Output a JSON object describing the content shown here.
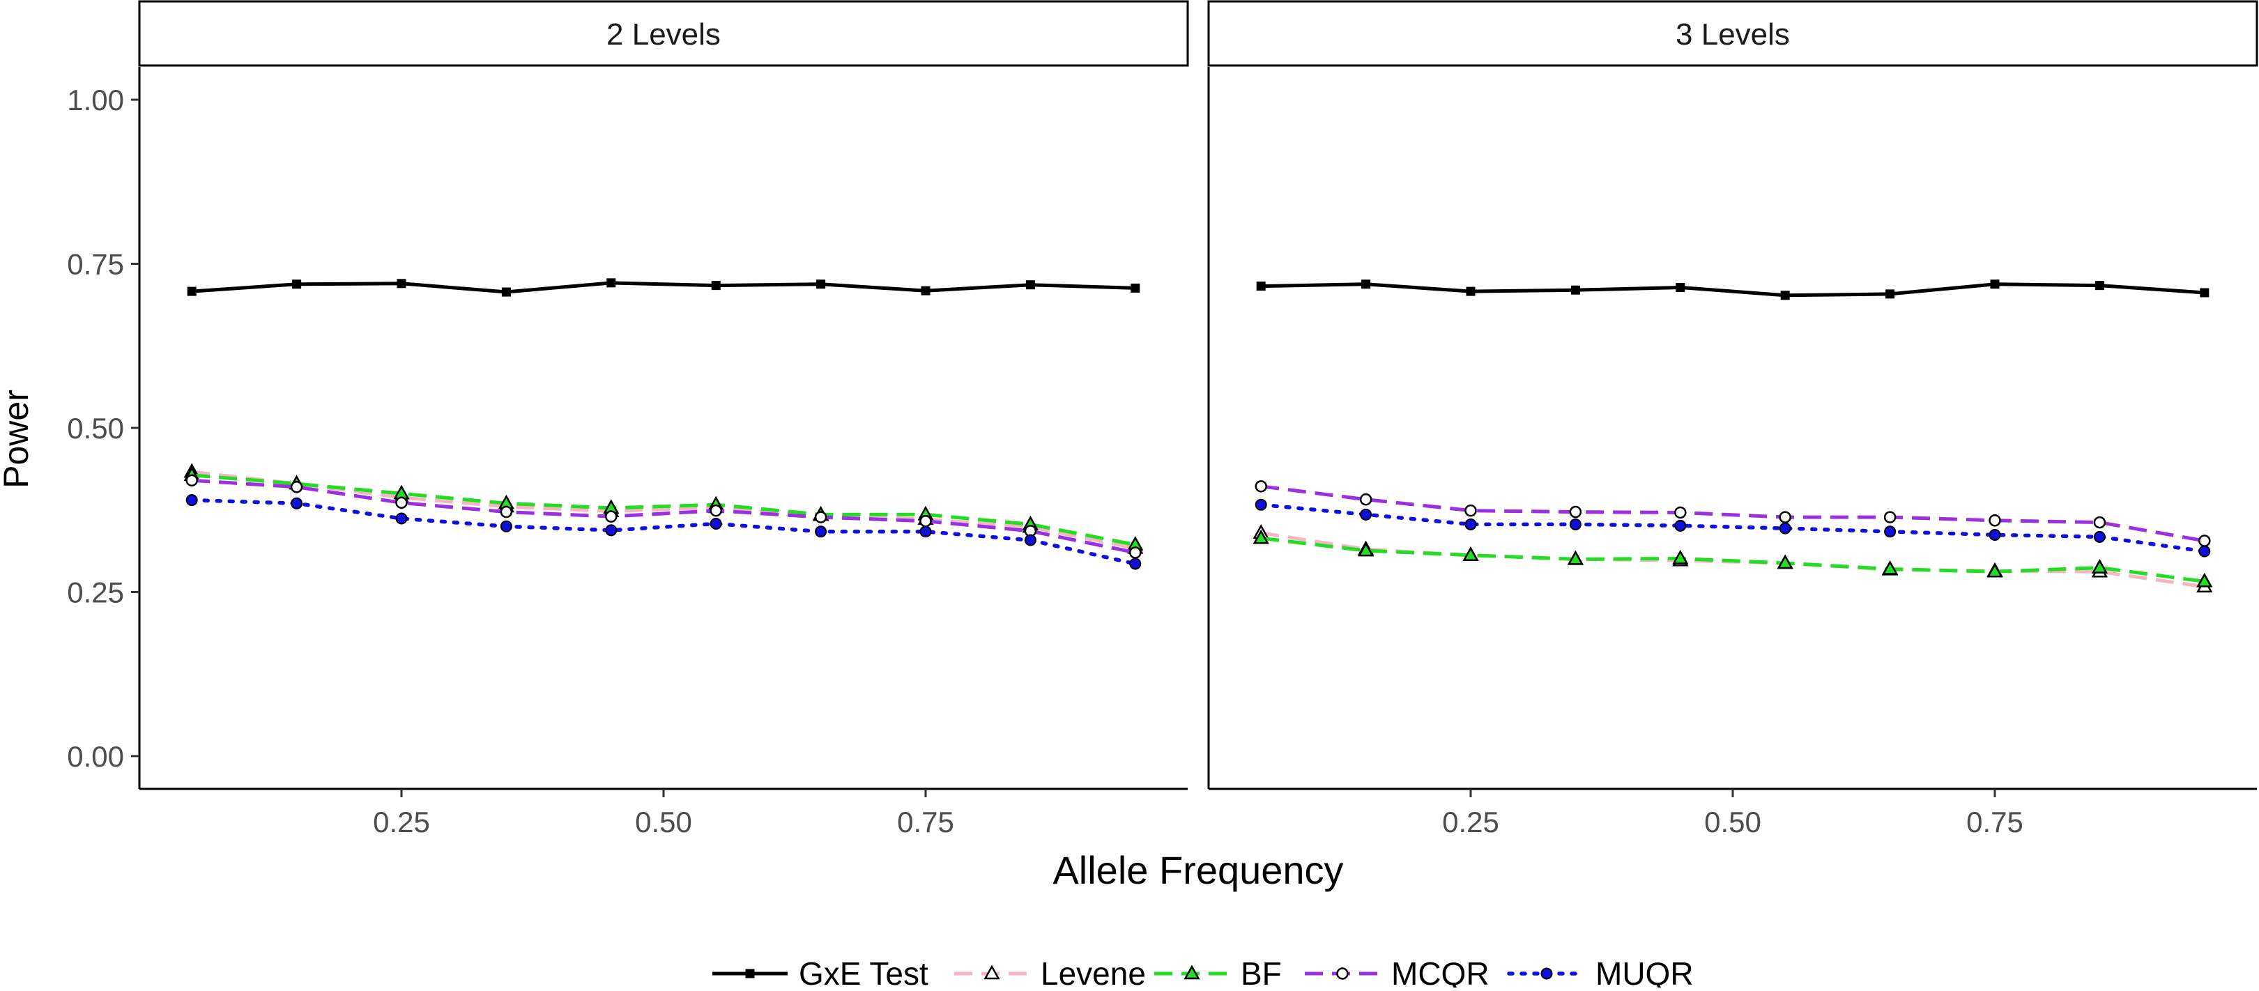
{
  "chart_data": {
    "type": "line",
    "xlabel": "Allele Frequency",
    "ylabel": "Power",
    "xlim": [
      0.0,
      1.0
    ],
    "ylim": [
      -0.05,
      1.05
    ],
    "x_ticks": [
      0.25,
      0.5,
      0.75
    ],
    "x_tick_labels": [
      "0.25",
      "0.50",
      "0.75"
    ],
    "y_ticks": [
      0.0,
      0.25,
      0.5,
      0.75,
      1.0
    ],
    "y_tick_labels": [
      "0.00",
      "0.25",
      "0.50",
      "0.75",
      "1.00"
    ],
    "grid": false,
    "legend_position": "bottom",
    "x": [
      0.05,
      0.15,
      0.25,
      0.35,
      0.45,
      0.55,
      0.65,
      0.75,
      0.85,
      0.95
    ],
    "series_styles": [
      {
        "name": "GxE Test",
        "color": "#000000",
        "dash": "solid",
        "marker": "square"
      },
      {
        "name": "Levene",
        "color": "#f4b6c2",
        "dash": "dashed",
        "marker": "triangle-open"
      },
      {
        "name": "BF",
        "color": "#22dd22",
        "dash": "dashed",
        "marker": "triangle-fill"
      },
      {
        "name": "MCQR",
        "color": "#9b30e0",
        "dash": "dashed",
        "marker": "circle-open"
      },
      {
        "name": "MUQR",
        "color": "#1010dd",
        "dash": "dotted",
        "marker": "circle-fill"
      }
    ],
    "panels": [
      {
        "strip_label": "2 Levels",
        "series": [
          {
            "name": "GxE Test",
            "values": [
              0.708,
              0.719,
              0.72,
              0.707,
              0.721,
              0.717,
              0.719,
              0.709,
              0.718,
              0.713
            ]
          },
          {
            "name": "Levene",
            "values": [
              0.433,
              0.415,
              0.394,
              0.38,
              0.373,
              0.379,
              0.367,
              0.361,
              0.349,
              0.317
            ]
          },
          {
            "name": "BF",
            "values": [
              0.428,
              0.415,
              0.4,
              0.385,
              0.378,
              0.383,
              0.368,
              0.368,
              0.353,
              0.322
            ]
          },
          {
            "name": "MCQR",
            "values": [
              0.42,
              0.41,
              0.386,
              0.372,
              0.365,
              0.374,
              0.364,
              0.358,
              0.343,
              0.31
            ]
          },
          {
            "name": "MUQR",
            "values": [
              0.39,
              0.385,
              0.362,
              0.35,
              0.344,
              0.354,
              0.342,
              0.342,
              0.329,
              0.293
            ]
          }
        ]
      },
      {
        "strip_label": "3 Levels",
        "series": [
          {
            "name": "GxE Test",
            "values": [
              0.716,
              0.719,
              0.708,
              0.71,
              0.714,
              0.702,
              0.704,
              0.719,
              0.717,
              0.706
            ]
          },
          {
            "name": "Levene",
            "values": [
              0.34,
              0.315,
              0.306,
              0.3,
              0.298,
              0.294,
              0.284,
              0.282,
              0.281,
              0.258
            ]
          },
          {
            "name": "BF",
            "values": [
              0.332,
              0.313,
              0.306,
              0.3,
              0.301,
              0.294,
              0.285,
              0.281,
              0.287,
              0.266
            ]
          },
          {
            "name": "MCQR",
            "values": [
              0.411,
              0.391,
              0.374,
              0.372,
              0.371,
              0.364,
              0.364,
              0.359,
              0.356,
              0.328
            ]
          },
          {
            "name": "MUQR",
            "values": [
              0.383,
              0.368,
              0.353,
              0.353,
              0.351,
              0.347,
              0.342,
              0.337,
              0.334,
              0.312
            ]
          }
        ]
      }
    ]
  }
}
